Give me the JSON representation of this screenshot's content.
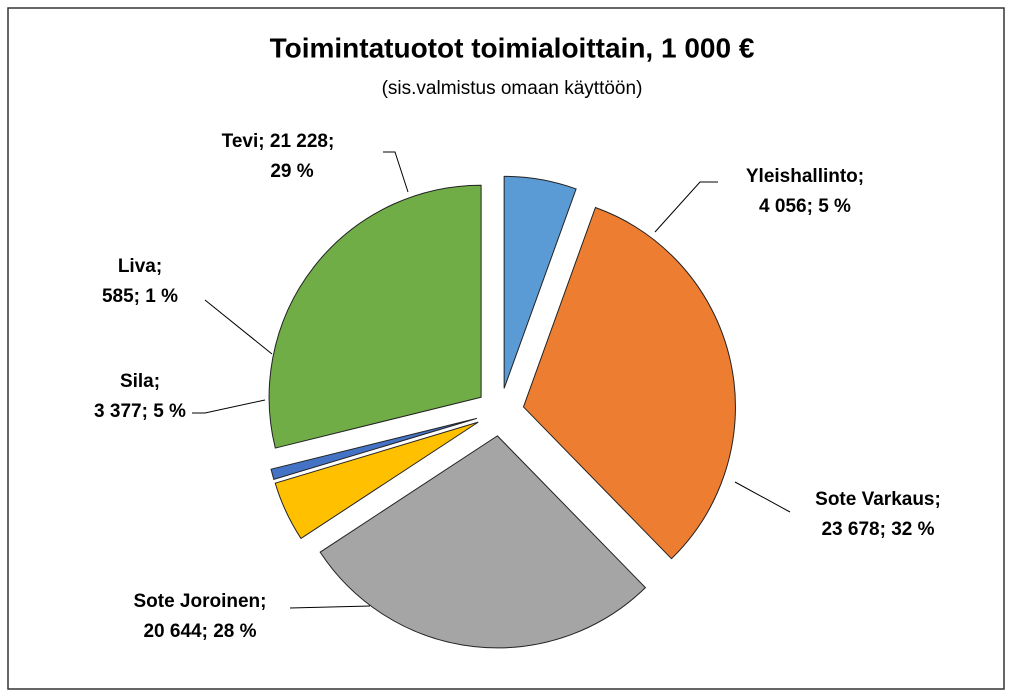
{
  "chart_data": {
    "type": "pie",
    "title": "Toimintatuotot toimialoittain, 1 000 €",
    "subtitle": "(sis.valmistus omaan käyttöön)",
    "values": [
      4056,
      23678,
      20644,
      3377,
      585,
      21228
    ],
    "labels": [
      [
        "Yleishallinto;",
        "4 056; 5 %"
      ],
      [
        "Sote Varkaus;",
        "23 678; 32 %"
      ],
      [
        "Sote Joroinen;",
        "20 644; 28 %"
      ],
      [
        "Sila;",
        "3 377; 5 %"
      ],
      [
        "Liva;",
        "585; 1 %"
      ],
      [
        "Tevi; 21 228;",
        "29 %"
      ]
    ],
    "colors": [
      "#5b9bd5",
      "#ed7d31",
      "#a5a5a5",
      "#ffc000",
      "#4472c4",
      "#70ad47"
    ]
  }
}
